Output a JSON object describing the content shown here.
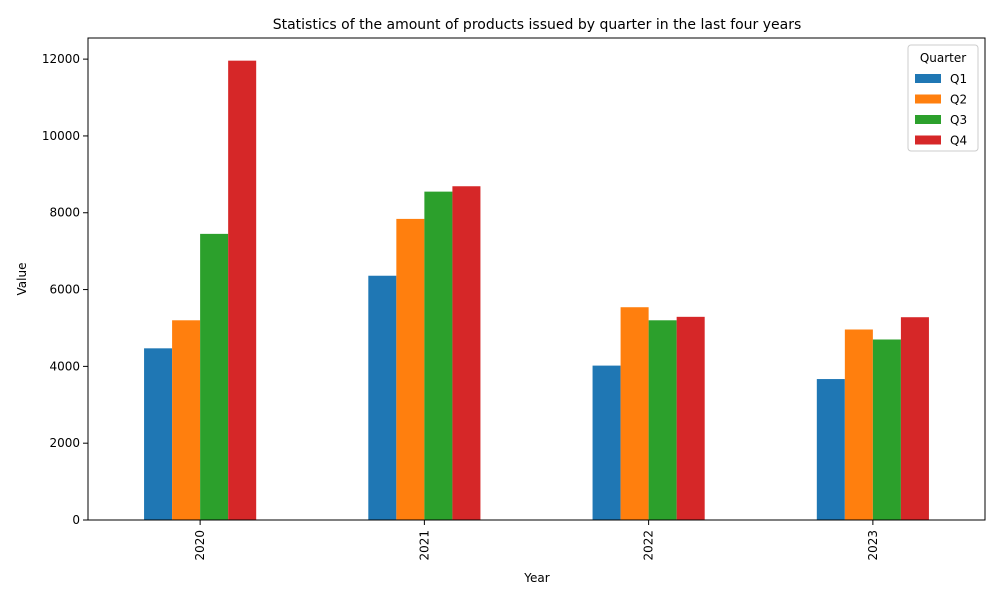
{
  "chart_data": {
    "type": "bar",
    "title": "Statistics of the amount of products issued by quarter in the last four years",
    "xlabel": "Year",
    "ylabel": "Value",
    "categories": [
      "2020",
      "2021",
      "2022",
      "2023"
    ],
    "ylim": [
      0,
      12550
    ],
    "yticks": [
      0,
      2000,
      4000,
      6000,
      8000,
      10000,
      12000
    ],
    "grid": false,
    "legend": {
      "title": "Quarter",
      "position": "top-right"
    },
    "series": [
      {
        "name": "Q1",
        "color": "#1f77b4",
        "values": [
          4470,
          6360,
          4020,
          3670
        ]
      },
      {
        "name": "Q2",
        "color": "#ff7f0e",
        "values": [
          5200,
          7840,
          5540,
          4960
        ]
      },
      {
        "name": "Q3",
        "color": "#2ca02c",
        "values": [
          7450,
          8550,
          5200,
          4700
        ]
      },
      {
        "name": "Q4",
        "color": "#d62728",
        "values": [
          11960,
          8690,
          5290,
          5280
        ]
      }
    ]
  }
}
